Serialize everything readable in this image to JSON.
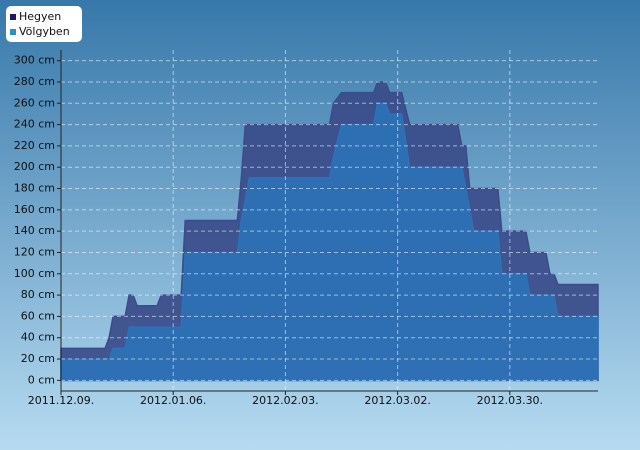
{
  "chart_data": {
    "type": "area",
    "x": [
      "2011-12-09",
      "2011-12-20",
      "2011-12-21",
      "2011-12-22",
      "2011-12-25",
      "2011-12-26",
      "2011-12-27",
      "2011-12-28",
      "2012-01-02",
      "2012-01-03",
      "2012-01-08",
      "2012-01-09",
      "2012-01-22",
      "2012-01-23",
      "2012-01-24",
      "2012-01-25",
      "2012-02-14",
      "2012-02-15",
      "2012-02-17",
      "2012-02-25",
      "2012-02-26",
      "2012-02-28",
      "2012-02-29",
      "2012-03-03",
      "2012-03-05",
      "2012-03-17",
      "2012-03-18",
      "2012-03-19",
      "2012-03-20",
      "2012-03-21",
      "2012-03-27",
      "2012-03-28",
      "2012-04-03",
      "2012-04-04",
      "2012-04-08",
      "2012-04-09",
      "2012-04-10",
      "2012-04-11",
      "2012-04-21"
    ],
    "series": [
      {
        "name": "Hegyen",
        "color": "#3a4c8a",
        "legend_color": "#1c1c5c",
        "values": [
          30,
          30,
          40,
          60,
          60,
          80,
          80,
          70,
          70,
          80,
          80,
          150,
          150,
          190,
          240,
          240,
          240,
          260,
          270,
          270,
          280,
          280,
          270,
          270,
          240,
          240,
          220,
          220,
          180,
          180,
          180,
          140,
          140,
          120,
          120,
          100,
          100,
          90,
          90
        ]
      },
      {
        "name": "Völgyben",
        "color": "#2d72b6",
        "legend_color": "#2a90d2",
        "values": [
          20,
          20,
          20,
          30,
          30,
          50,
          50,
          50,
          50,
          50,
          50,
          120,
          120,
          150,
          170,
          190,
          190,
          210,
          240,
          240,
          260,
          260,
          250,
          250,
          200,
          200,
          200,
          180,
          160,
          140,
          140,
          100,
          100,
          80,
          80,
          80,
          80,
          60,
          60
        ]
      }
    ],
    "xlim": [
      "2011-12-09",
      "2012-04-21"
    ],
    "xticks": [
      {
        "value": "2011-12-09",
        "label": "2011.12.09."
      },
      {
        "value": "2012-01-06",
        "label": "2012.01.06."
      },
      {
        "value": "2012-02-03",
        "label": "2012.02.03."
      },
      {
        "value": "2012-03-02",
        "label": "2012.03.02."
      },
      {
        "value": "2012-03-30",
        "label": "2012.03.30."
      }
    ],
    "ylim": [
      -10,
      310
    ],
    "yticks": [
      {
        "value": 0,
        "label": "0 cm"
      },
      {
        "value": 20,
        "label": "20 cm"
      },
      {
        "value": 40,
        "label": "40 cm"
      },
      {
        "value": 60,
        "label": "60 cm"
      },
      {
        "value": 80,
        "label": "80 cm"
      },
      {
        "value": 100,
        "label": "100 cm"
      },
      {
        "value": 120,
        "label": "120 cm"
      },
      {
        "value": 140,
        "label": "140 cm"
      },
      {
        "value": 160,
        "label": "160 cm"
      },
      {
        "value": 180,
        "label": "180 cm"
      },
      {
        "value": 200,
        "label": "200 cm"
      },
      {
        "value": 220,
        "label": "220 cm"
      },
      {
        "value": 240,
        "label": "240 cm"
      },
      {
        "value": 260,
        "label": "260 cm"
      },
      {
        "value": 280,
        "label": "280 cm"
      },
      {
        "value": 300,
        "label": "300 cm"
      }
    ],
    "grid": true,
    "legend": "top-left"
  }
}
